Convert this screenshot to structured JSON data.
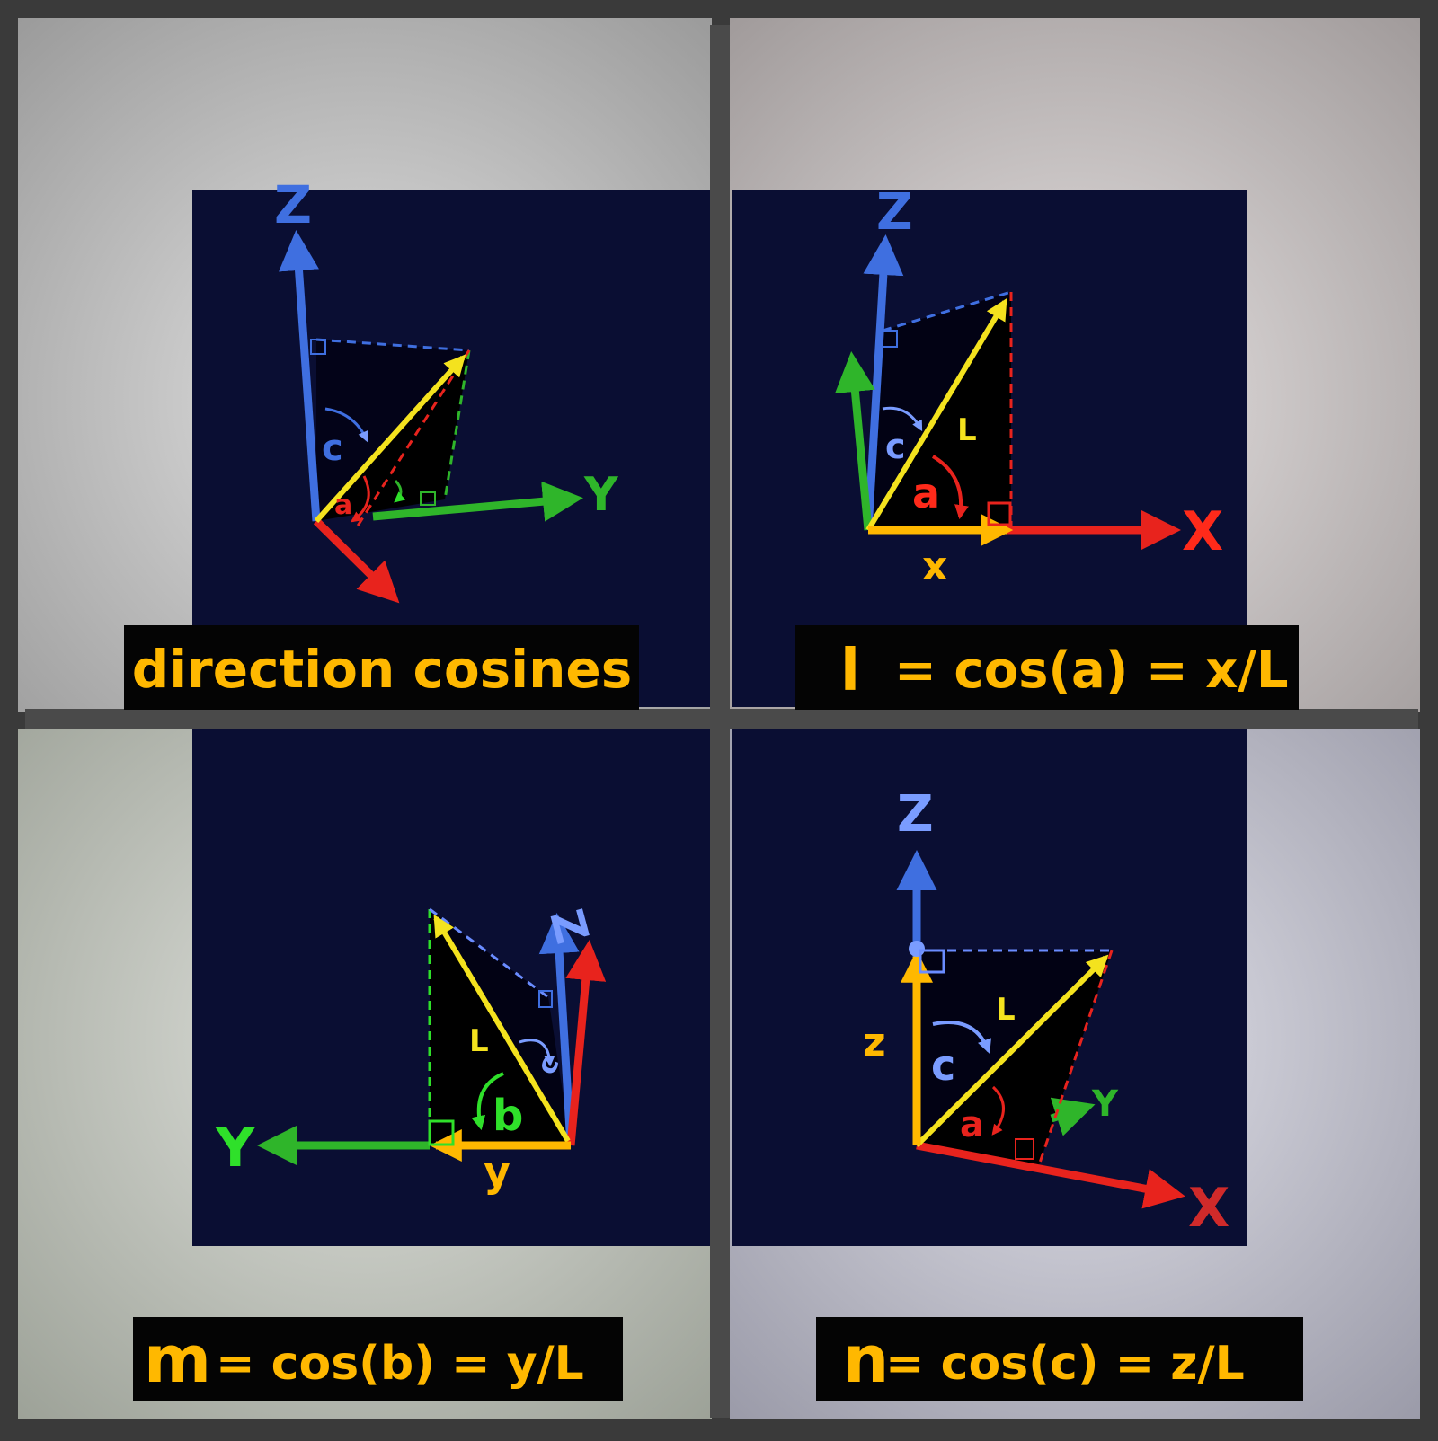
{
  "colors": {
    "frame": "#3a3a3a",
    "wall": "#cfcfcf",
    "panel": "#0a0e33",
    "x_axis": "#e8231d",
    "y_axis": "#2fb52a",
    "z_axis": "#3f6fe0",
    "vector": "#f4e21e",
    "caption_text": "#ffb800"
  },
  "panels": [
    {
      "caption": "direction cosines",
      "axis_labels": {
        "z": "Z",
        "y": "Y"
      },
      "angle_labels": {
        "c": "c",
        "a": "a"
      }
    },
    {
      "caption_symbol": "l",
      "caption": "= cos(a) = x/L",
      "axis_labels": {
        "z": "Z",
        "x": "X"
      },
      "vector_label": "L",
      "angle_labels": {
        "a": "a",
        "c": "c"
      },
      "component_label": "x"
    },
    {
      "caption_symbol": "m",
      "caption": "= cos(b) = y/L",
      "axis_labels": {
        "y": "Y",
        "z": "Z"
      },
      "vector_label": "L",
      "angle_labels": {
        "b": "b",
        "c": "c"
      },
      "component_label": "y"
    },
    {
      "caption_symbol": "n",
      "caption": "= cos(c) = z/L",
      "axis_labels": {
        "z": "Z",
        "x": "X",
        "y": "Y"
      },
      "vector_label": "L",
      "angle_labels": {
        "c": "c",
        "a": "a"
      },
      "component_label": "z"
    }
  ]
}
